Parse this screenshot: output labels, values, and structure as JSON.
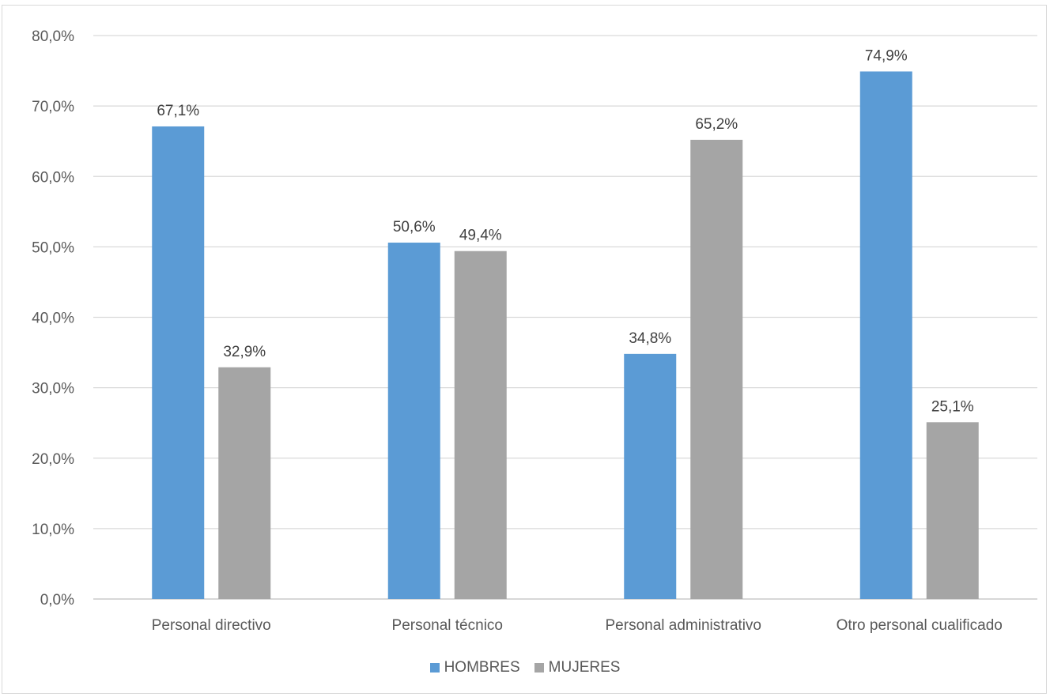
{
  "chart_data": {
    "type": "bar",
    "categories": [
      "Personal directivo",
      "Personal técnico",
      "Personal administrativo",
      "Otro personal cualificado"
    ],
    "series": [
      {
        "name": "HOMBRES",
        "values": [
          67.1,
          50.6,
          34.8,
          74.9
        ],
        "labels": [
          "67,1%",
          "50,6%",
          "34,8%",
          "74,9%"
        ],
        "color": "#5b9bd5"
      },
      {
        "name": "MUJERES",
        "values": [
          32.9,
          49.4,
          65.2,
          25.1
        ],
        "labels": [
          "32,9%",
          "49,4%",
          "65,2%",
          "25,1%"
        ],
        "color": "#a5a5a5"
      }
    ],
    "y_ticks": [
      "0,0%",
      "10,0%",
      "20,0%",
      "30,0%",
      "40,0%",
      "50,0%",
      "60,0%",
      "70,0%",
      "80,0%"
    ],
    "ylim": [
      0,
      80
    ],
    "grid": true,
    "legend_position": "bottom",
    "title": "",
    "xlabel": "",
    "ylabel": ""
  }
}
